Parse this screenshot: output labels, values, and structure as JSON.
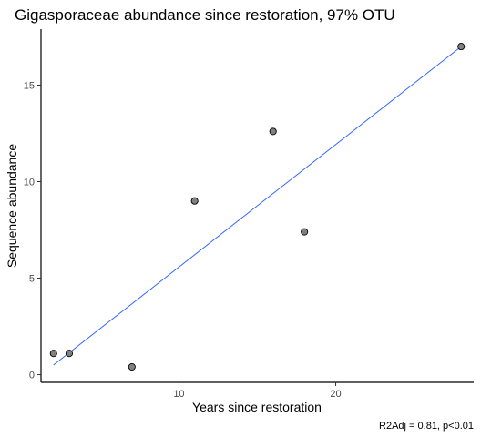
{
  "chart_data": {
    "type": "scatter",
    "title": "Gigasporaceae abundance since restoration, 97% OTU",
    "xlabel": "Years since restoration",
    "ylabel": "Sequence abundance",
    "caption": "R2Adj = 0.81, p<0.01",
    "xlim": [
      1.2,
      28.8
    ],
    "ylim": [
      -0.4,
      17.9
    ],
    "x_ticks": [
      10,
      20
    ],
    "y_ticks": [
      0,
      5,
      10,
      15
    ],
    "grid": false,
    "legend": "none",
    "point_color": "#808080",
    "point_stroke": "#000000",
    "line_color": "#3366ff",
    "points": [
      {
        "x": 2,
        "y": 1.1
      },
      {
        "x": 3,
        "y": 1.1
      },
      {
        "x": 7,
        "y": 0.4
      },
      {
        "x": 11,
        "y": 9.0
      },
      {
        "x": 16,
        "y": 12.6
      },
      {
        "x": 18,
        "y": 7.4
      },
      {
        "x": 28,
        "y": 17.0
      }
    ],
    "fit_line": {
      "x": [
        2,
        28
      ],
      "y": [
        0.5,
        17.0
      ]
    }
  }
}
